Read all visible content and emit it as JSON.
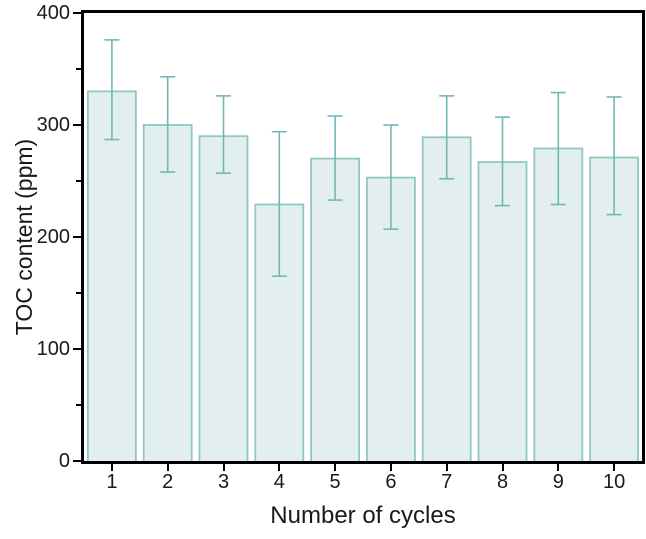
{
  "chart_data": {
    "type": "bar",
    "xlabel": "Number of cycles",
    "ylabel": "TOC content (ppm)",
    "categories": [
      "1",
      "2",
      "3",
      "4",
      "5",
      "6",
      "7",
      "8",
      "9",
      "10"
    ],
    "values": [
      330,
      300,
      290,
      229,
      270,
      253,
      289,
      267,
      279,
      271
    ],
    "error_low": [
      287,
      258,
      257,
      165,
      233,
      207,
      252,
      228,
      229,
      220
    ],
    "error_high": [
      376,
      343,
      326,
      294,
      308,
      300,
      326,
      307,
      329,
      325
    ],
    "ylim": [
      0,
      400
    ],
    "y_major_ticks": [
      0,
      100,
      200,
      300,
      400
    ],
    "y_minor_ticks": [
      50,
      150,
      250,
      350
    ],
    "grid": false,
    "legend_position": "none",
    "colors": {
      "bar_fill": "#e2efee",
      "bar_border": "#8fc7c4",
      "error_bar": "#70b8b5",
      "axis": "#000000",
      "text": "#1a1a1a"
    }
  }
}
